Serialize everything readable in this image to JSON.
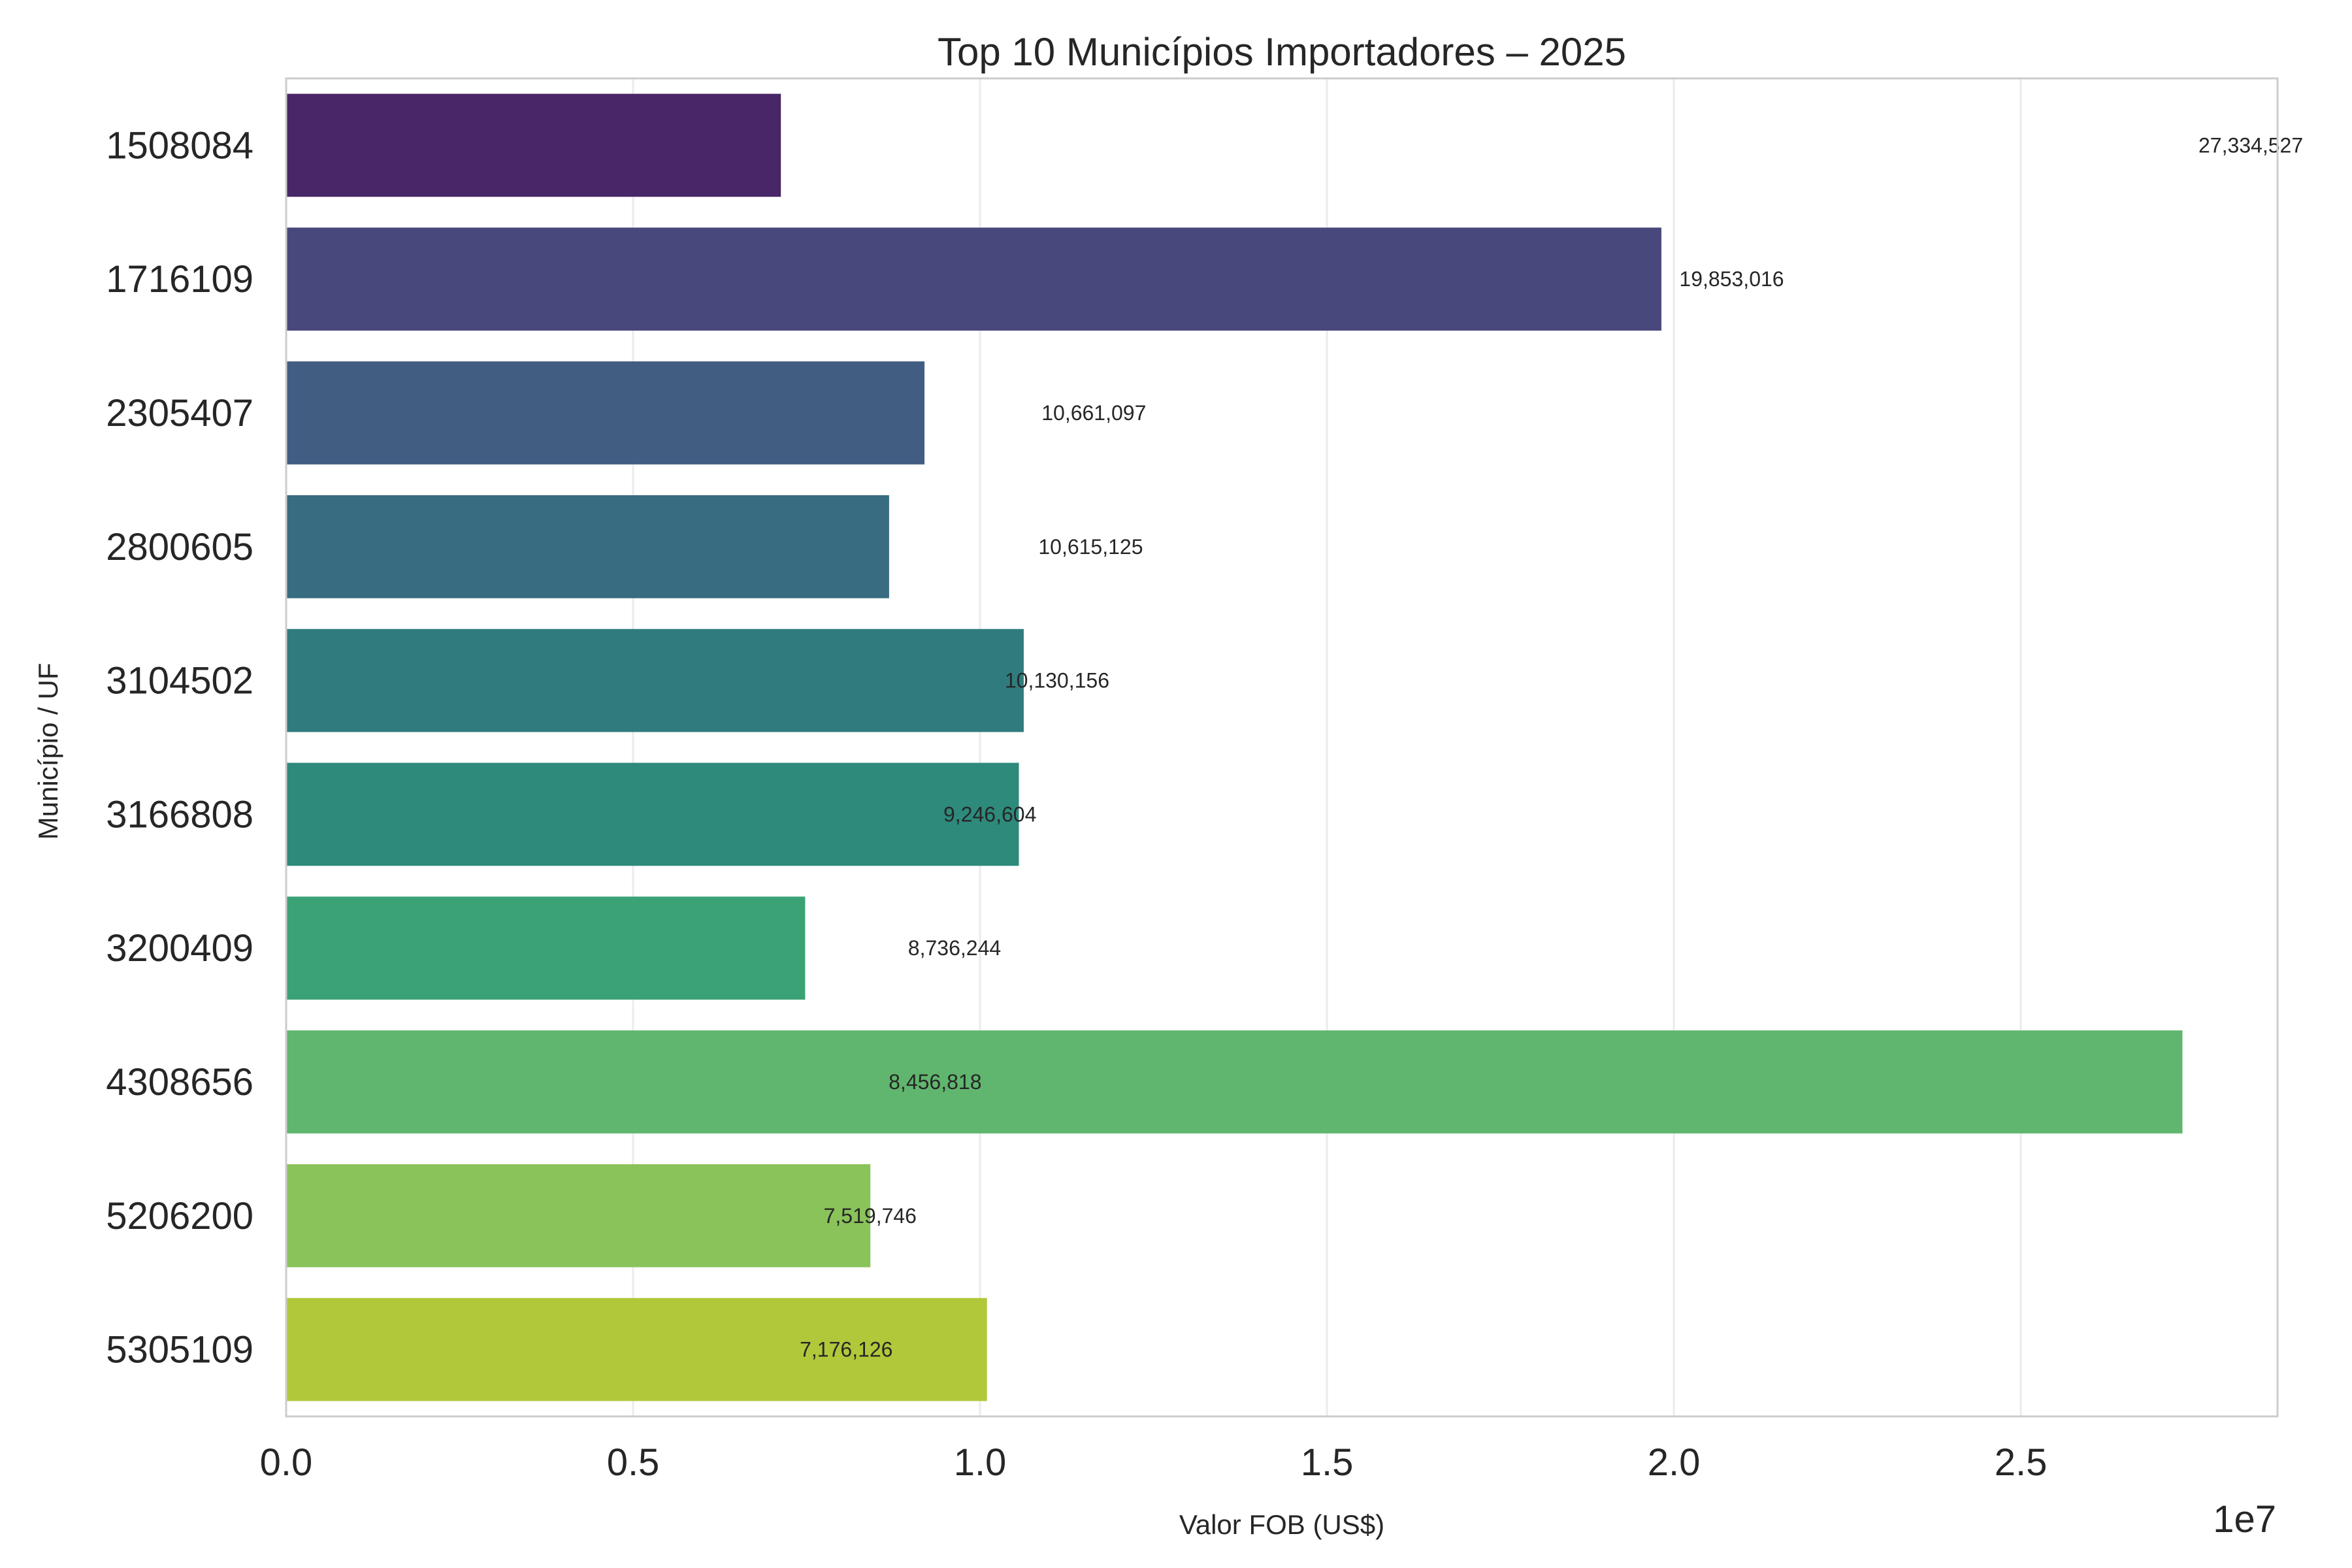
{
  "chart_data": {
    "type": "bar",
    "orientation": "horizontal",
    "title": "Top 10 Municípios Importadores – 2025",
    "xlabel": "Valor FOB (US$)",
    "ylabel": "Município / UF",
    "x_offset_label": "1e7",
    "xlim": [
      0,
      28700000
    ],
    "x_ticks": [
      "0.0",
      "0.5",
      "1.0",
      "1.5",
      "2.0",
      "2.5"
    ],
    "x_tick_values": [
      0,
      5000000,
      10000000,
      15000000,
      20000000,
      25000000
    ],
    "grid": "vertical",
    "categories": [
      "1508084",
      "1716109",
      "2305407",
      "2800605",
      "3104502",
      "3166808",
      "3200409",
      "4308656",
      "5206200",
      "5305109"
    ],
    "values": [
      7130000,
      19820000,
      9200000,
      8690000,
      10630000,
      10560000,
      7480000,
      27330000,
      8420000,
      10100000
    ],
    "data_labels": [
      "27,334,527",
      "19,853,016",
      "10,661,097",
      "10,615,125",
      "10,130,156",
      "9,246,604",
      "8,736,244",
      "8,456,818",
      "7,519,746",
      "7,176,126"
    ],
    "data_label_positions": [
      27334527,
      19853016,
      10661097,
      10615125,
      10130156,
      9246604,
      8736244,
      8456818,
      7519746,
      7176126
    ],
    "colors": [
      "#482668",
      "#48487c",
      "#425d82",
      "#386c80",
      "#307b7e",
      "#2e8a7b",
      "#3ba276",
      "#60b66e",
      "#8ac35a",
      "#b0c83a"
    ],
    "legend": "none"
  }
}
